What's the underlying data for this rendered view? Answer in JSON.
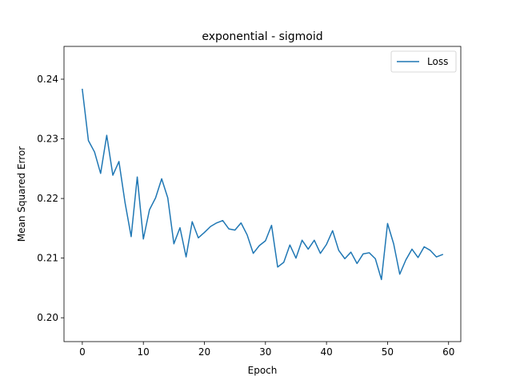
{
  "chart_data": {
    "type": "line",
    "title": "exponential - sigmoid",
    "xlabel": "Epoch",
    "ylabel": "Mean Squared Error",
    "xlim": [
      -3,
      62
    ],
    "ylim": [
      0.196,
      0.2455
    ],
    "xticks": [
      0,
      10,
      20,
      30,
      40,
      50,
      60
    ],
    "xtick_labels": [
      "0",
      "10",
      "20",
      "30",
      "40",
      "50",
      "60"
    ],
    "yticks": [
      0.2,
      0.21,
      0.22,
      0.23,
      0.24
    ],
    "ytick_labels": [
      "0.20",
      "0.21",
      "0.22",
      "0.23",
      "0.24"
    ],
    "grid": false,
    "legend_position": "top-right",
    "series": [
      {
        "name": "Loss",
        "color": "#1f77b4",
        "x": [
          0,
          1,
          2,
          3,
          4,
          5,
          6,
          7,
          8,
          9,
          10,
          11,
          12,
          13,
          14,
          15,
          16,
          17,
          18,
          19,
          20,
          21,
          22,
          23,
          24,
          25,
          26,
          27,
          28,
          29,
          30,
          31,
          32,
          33,
          34,
          35,
          36,
          37,
          38,
          39,
          40,
          41,
          42,
          43,
          44,
          45,
          46,
          47,
          48,
          49,
          50,
          51,
          52,
          53,
          54,
          55,
          56,
          57,
          58,
          59
        ],
        "values": [
          0.2383,
          0.2297,
          0.2278,
          0.2242,
          0.2306,
          0.2239,
          0.2262,
          0.2193,
          0.2136,
          0.2236,
          0.2132,
          0.2181,
          0.2201,
          0.2233,
          0.2201,
          0.2124,
          0.2151,
          0.2102,
          0.2161,
          0.2134,
          0.2143,
          0.2153,
          0.2159,
          0.2163,
          0.2149,
          0.2147,
          0.2159,
          0.2139,
          0.2108,
          0.2121,
          0.2129,
          0.2155,
          0.2085,
          0.2093,
          0.2122,
          0.21,
          0.213,
          0.2115,
          0.213,
          0.2108,
          0.2123,
          0.2146,
          0.2113,
          0.2099,
          0.211,
          0.2091,
          0.2107,
          0.2109,
          0.2099,
          0.2064,
          0.2158,
          0.2124,
          0.2073,
          0.2097,
          0.2115,
          0.2101,
          0.2119,
          0.2113,
          0.2102,
          0.2106
        ]
      }
    ]
  }
}
